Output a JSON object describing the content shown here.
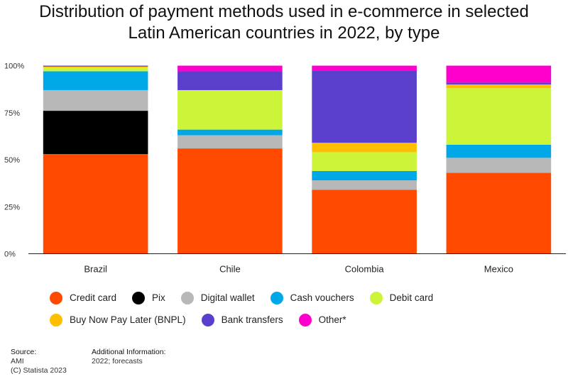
{
  "title_line1": "Distribution of payment methods used in e-commerce in selected",
  "title_line2": "Latin American countries in 2022, by type",
  "chart_data": {
    "type": "bar",
    "stacked": true,
    "categories": [
      "Brazil",
      "Chile",
      "Colombia",
      "Mexico"
    ],
    "y_ticks": [
      "0%",
      "25%",
      "50%",
      "75%",
      "100%"
    ],
    "ylim": [
      0,
      100
    ],
    "grid": false,
    "legend_position": "bottom",
    "series": [
      {
        "name": "Credit card",
        "color": "#ff4a00",
        "values": [
          53,
          56,
          34,
          43
        ]
      },
      {
        "name": "Pix",
        "color": "#000000",
        "values": [
          23,
          0,
          0,
          0
        ]
      },
      {
        "name": "Digital wallet",
        "color": "#b8b8b8",
        "values": [
          11,
          7,
          5,
          8
        ]
      },
      {
        "name": "Cash vouchers",
        "color": "#00a8e8",
        "values": [
          10,
          3,
          5,
          7
        ]
      },
      {
        "name": "Debit card",
        "color": "#ccf53a",
        "values": [
          2,
          21,
          10,
          30
        ]
      },
      {
        "name": "Buy Now Pay Later (BNPL)",
        "color": "#ffbf00",
        "values": [
          0.5,
          0,
          5,
          2
        ]
      },
      {
        "name": "Bank transfers",
        "color": "#5a3fcc",
        "values": [
          0.5,
          10,
          38.5,
          1
        ]
      },
      {
        "name": "Other*",
        "color": "#ff00cc",
        "values": [
          0,
          3,
          2.5,
          9
        ]
      }
    ]
  },
  "legend_rows": [
    [
      "Credit card",
      "Pix",
      "Digital wallet",
      "Cash vouchers",
      "Debit card"
    ],
    [
      "Buy Now Pay Later (BNPL)",
      "Bank transfers",
      "Other*"
    ]
  ],
  "footer": {
    "source_label": "Source:",
    "source_value": "AMI",
    "copyright": "(C) Statista 2023",
    "info_label": "Additional Information:",
    "info_value": "2022; forecasts"
  }
}
